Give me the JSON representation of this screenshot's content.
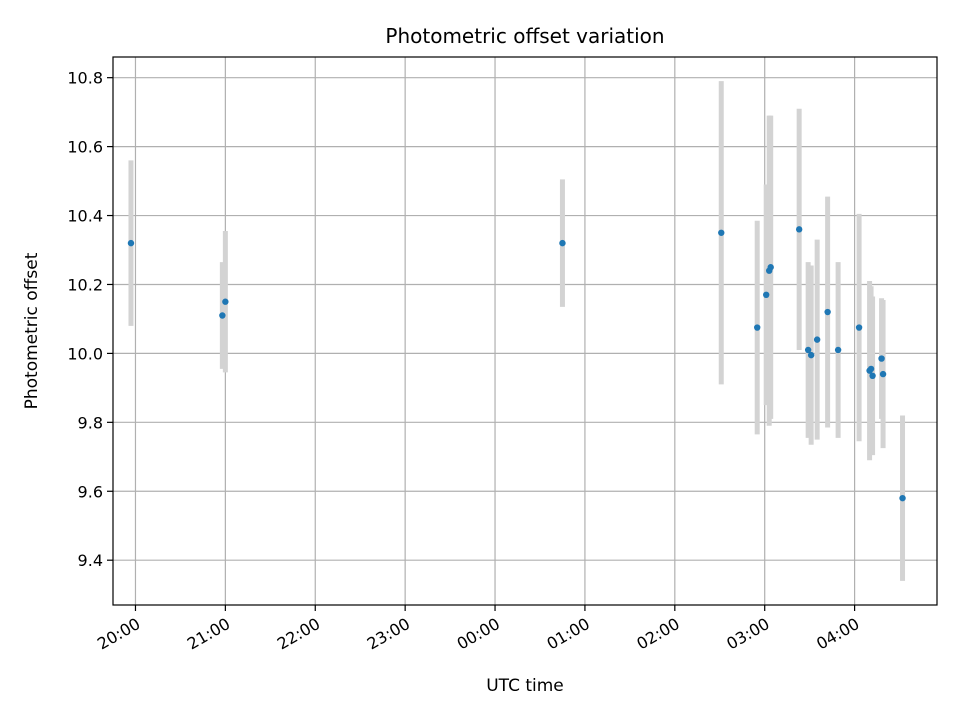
{
  "chart_data": {
    "type": "scatter",
    "title": "Photometric offset variation",
    "xlabel": "UTC time",
    "ylabel": "Photometric offset",
    "x_is_time": true,
    "xlim": [
      "19:45",
      "28:55"
    ],
    "ylim": [
      9.27,
      10.86
    ],
    "xticks": [
      "20:00",
      "21:00",
      "22:00",
      "23:00",
      "00:00",
      "01:00",
      "02:00",
      "03:00",
      "04:00"
    ],
    "yticks": [
      "9.4",
      "9.6",
      "9.8",
      "10.0",
      "10.2",
      "10.4",
      "10.6",
      "10.8"
    ],
    "grid": true,
    "colors": {
      "point": "#1f77b4",
      "errorbar": "#d3d3d3",
      "grid": "#b0b0b0"
    },
    "series": [
      {
        "points": [
          {
            "x": "19:57",
            "y": 10.32,
            "err": 0.24
          },
          {
            "x": "20:58",
            "y": 10.11,
            "err": 0.155
          },
          {
            "x": "21:00",
            "y": 10.15,
            "err": 0.205
          },
          {
            "x": "00:45",
            "y": 10.32,
            "err": 0.185
          },
          {
            "x": "02:31",
            "y": 10.35,
            "err": 0.44
          },
          {
            "x": "02:55",
            "y": 10.075,
            "err": 0.31
          },
          {
            "x": "03:01",
            "y": 10.17,
            "err": 0.32
          },
          {
            "x": "03:03",
            "y": 10.24,
            "err": 0.45
          },
          {
            "x": "03:04",
            "y": 10.25,
            "err": 0.44
          },
          {
            "x": "03:23",
            "y": 10.36,
            "err": 0.35
          },
          {
            "x": "03:29",
            "y": 10.01,
            "err": 0.255
          },
          {
            "x": "03:31",
            "y": 9.995,
            "err": 0.26
          },
          {
            "x": "03:35",
            "y": 10.04,
            "err": 0.29
          },
          {
            "x": "03:42",
            "y": 10.12,
            "err": 0.335
          },
          {
            "x": "03:49",
            "y": 10.01,
            "err": 0.255
          },
          {
            "x": "04:03",
            "y": 10.075,
            "err": 0.33
          },
          {
            "x": "04:10",
            "y": 9.95,
            "err": 0.26
          },
          {
            "x": "04:11",
            "y": 9.955,
            "err": 0.24
          },
          {
            "x": "04:12",
            "y": 9.935,
            "err": 0.23
          },
          {
            "x": "04:18",
            "y": 9.985,
            "err": 0.175
          },
          {
            "x": "04:19",
            "y": 9.94,
            "err": 0.215
          },
          {
            "x": "04:32",
            "y": 9.58,
            "err": 0.24
          }
        ]
      }
    ]
  }
}
